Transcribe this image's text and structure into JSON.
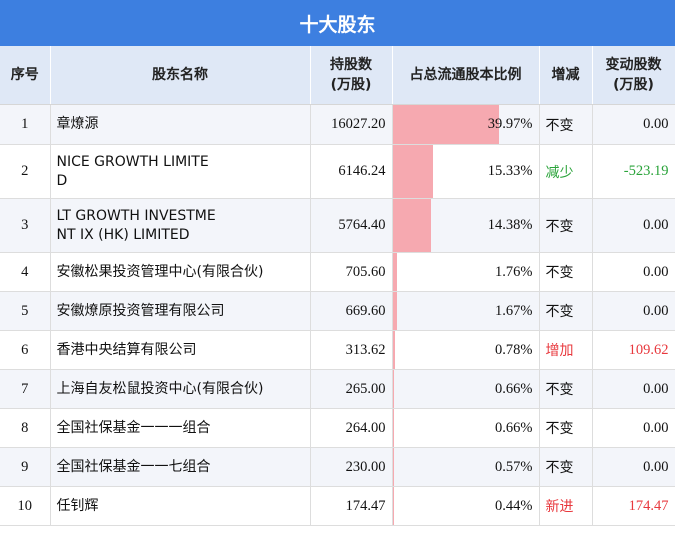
{
  "title": "十大股东",
  "headers": {
    "seq": "序号",
    "name": "股东名称",
    "shares_1": "持股数",
    "shares_2": "(万股)",
    "ratio": "占总流通股本比例",
    "change": "增减",
    "delta_1": "变动股数",
    "delta_2": "(万股)"
  },
  "colors": {
    "header_bg": "#3d7fe0",
    "bar": "#f6a9b0",
    "increase": "#e8383d",
    "decrease": "#2aa33a"
  },
  "rows": [
    {
      "seq": "1",
      "name_l1": "章燎源",
      "name_l2": "",
      "shares": "16027.20",
      "ratio": "39.97%",
      "ratio_value": 39.97,
      "change": "不变",
      "change_type": "flat",
      "delta": "0.00"
    },
    {
      "seq": "2",
      "name_l1": "NICE GROWTH LIMITE",
      "name_l2": "D",
      "shares": "6146.24",
      "ratio": "15.33%",
      "ratio_value": 15.33,
      "change": "减少",
      "change_type": "down",
      "delta": "-523.19"
    },
    {
      "seq": "3",
      "name_l1": "LT GROWTH INVESTME",
      "name_l2": "NT IX (HK) LIMITED",
      "shares": "5764.40",
      "ratio": "14.38%",
      "ratio_value": 14.38,
      "change": "不变",
      "change_type": "flat",
      "delta": "0.00"
    },
    {
      "seq": "4",
      "name_l1": "安徽松果投资管理中心(有限合伙)",
      "name_l2": "",
      "shares": "705.60",
      "ratio": "1.76%",
      "ratio_value": 1.76,
      "change": "不变",
      "change_type": "flat",
      "delta": "0.00"
    },
    {
      "seq": "5",
      "name_l1": "安徽燎原投资管理有限公司",
      "name_l2": "",
      "shares": "669.60",
      "ratio": "1.67%",
      "ratio_value": 1.67,
      "change": "不变",
      "change_type": "flat",
      "delta": "0.00"
    },
    {
      "seq": "6",
      "name_l1": "香港中央结算有限公司",
      "name_l2": "",
      "shares": "313.62",
      "ratio": "0.78%",
      "ratio_value": 0.78,
      "change": "增加",
      "change_type": "up",
      "delta": "109.62"
    },
    {
      "seq": "7",
      "name_l1": "上海自友松鼠投资中心(有限合伙)",
      "name_l2": "",
      "shares": "265.00",
      "ratio": "0.66%",
      "ratio_value": 0.66,
      "change": "不变",
      "change_type": "flat",
      "delta": "0.00"
    },
    {
      "seq": "8",
      "name_l1": "全国社保基金一一一组合",
      "name_l2": "",
      "shares": "264.00",
      "ratio": "0.66%",
      "ratio_value": 0.66,
      "change": "不变",
      "change_type": "flat",
      "delta": "0.00"
    },
    {
      "seq": "9",
      "name_l1": "全国社保基金一一七组合",
      "name_l2": "",
      "shares": "230.00",
      "ratio": "0.57%",
      "ratio_value": 0.57,
      "change": "不变",
      "change_type": "flat",
      "delta": "0.00"
    },
    {
      "seq": "10",
      "name_l1": "任钊辉",
      "name_l2": "",
      "shares": "174.47",
      "ratio": "0.44%",
      "ratio_value": 0.44,
      "change": "新进",
      "change_type": "up",
      "delta": "174.47"
    }
  ]
}
